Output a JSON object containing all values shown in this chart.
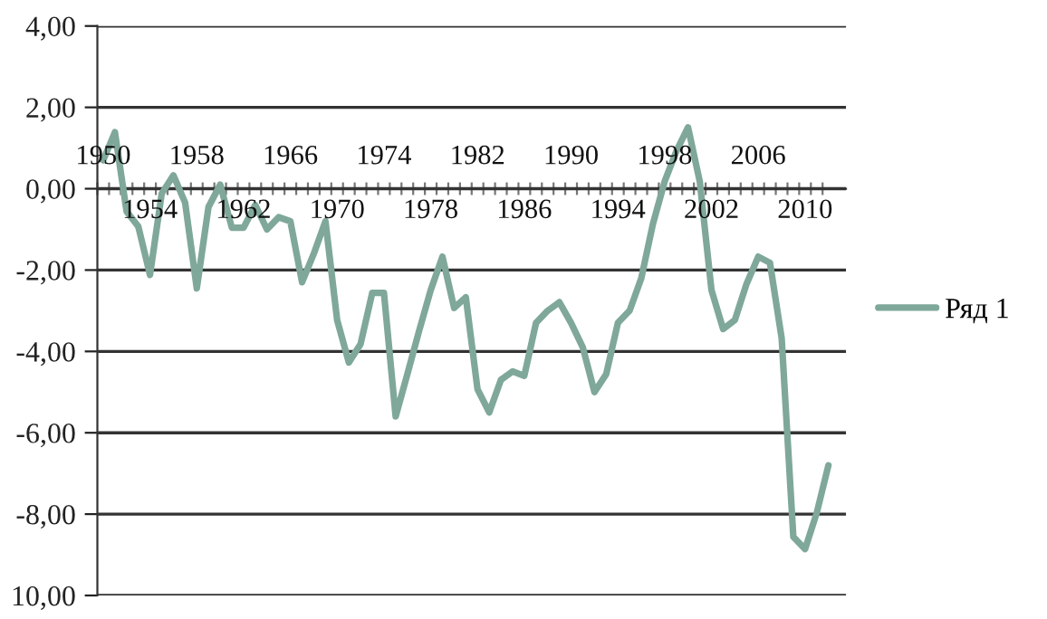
{
  "chart_data": {
    "type": "line",
    "categories": [
      "1950",
      null,
      null,
      null,
      "1954",
      null,
      null,
      null,
      "1958",
      null,
      null,
      null,
      "1962",
      null,
      null,
      null,
      "1966",
      null,
      null,
      null,
      "1970",
      null,
      null,
      null,
      "1974",
      null,
      null,
      null,
      "1978",
      null,
      null,
      null,
      "1982",
      null,
      null,
      null,
      "1986",
      null,
      null,
      null,
      "1990",
      null,
      null,
      null,
      "1994",
      null,
      null,
      null,
      "1998",
      null,
      null,
      null,
      "2002",
      null,
      null,
      null,
      "2006",
      null,
      null,
      null,
      "2010",
      null,
      null
    ],
    "series": [
      {
        "name": "Ряд 1",
        "color": "#7fa89a",
        "values": [
          0.7,
          1.39,
          -0.56,
          -0.93,
          -2.12,
          -0.12,
          0.33,
          -0.34,
          -2.45,
          -0.45,
          0.1,
          -0.96,
          -0.96,
          -0.4,
          -1.0,
          -0.7,
          -0.8,
          -2.3,
          -1.6,
          -0.8,
          -3.23,
          -4.27,
          -3.82,
          -2.56,
          -2.56,
          -5.6,
          -4.56,
          -3.5,
          -2.49,
          -1.67,
          -2.93,
          -2.67,
          -4.93,
          -5.5,
          -4.7,
          -4.49,
          -4.6,
          -3.3,
          -3.0,
          -2.79,
          -3.3,
          -3.9,
          -5.0,
          -4.56,
          -3.3,
          -3.0,
          -2.2,
          -0.86,
          0.18,
          0.92,
          1.51,
          0.18,
          -2.49,
          -3.45,
          -3.23,
          -2.34,
          -1.67,
          -1.82,
          -3.67,
          -8.56,
          -8.86,
          -7.97,
          -6.8
        ]
      }
    ],
    "ylim": [
      -10,
      4
    ],
    "yticks": [
      {
        "value": 4,
        "label": "4,00"
      },
      {
        "value": 2,
        "label": "2,00"
      },
      {
        "value": 0,
        "label": "0,00"
      },
      {
        "value": -2,
        "label": "-2,00"
      },
      {
        "value": -4,
        "label": "-4,00"
      },
      {
        "value": -6,
        "label": "-6,00"
      },
      {
        "value": -8,
        "label": "-8,00"
      },
      {
        "value": -10,
        "label": "10,00"
      }
    ],
    "grid": "y",
    "legend": "right"
  }
}
